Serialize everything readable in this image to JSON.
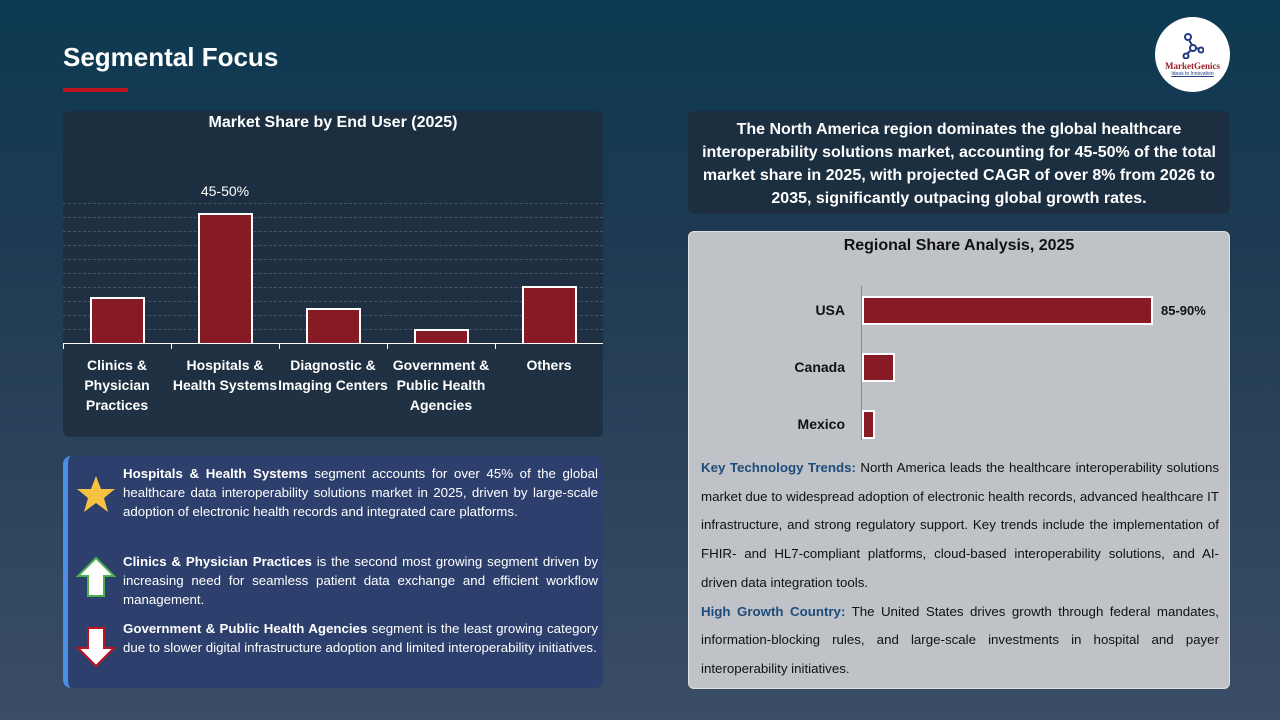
{
  "header": {
    "title": "Segmental Focus"
  },
  "logo": {
    "name": "MarketGenics",
    "tagline": "Ideas to Innovation"
  },
  "chart_data": [
    {
      "type": "bar",
      "title": "Market Share by End User (2025)",
      "categories": [
        "Clinics & Physician Practices",
        "Hospitals & Health Systems",
        "Diagnostic & Imaging Centers",
        "Government & Public Health Agencies",
        "Others"
      ],
      "values": [
        17,
        47.5,
        13,
        5,
        21
      ],
      "data_labels": [
        "",
        "45-50%",
        "",
        "",
        ""
      ],
      "ylim": [
        0,
        55
      ],
      "unit": "%",
      "grid": true,
      "color": "#861a25"
    },
    {
      "type": "bar",
      "orientation": "horizontal",
      "title": "Regional Share Analysis, 2025",
      "categories": [
        "USA",
        "Canada",
        "Mexico"
      ],
      "values": [
        87.5,
        10,
        4
      ],
      "data_labels": [
        "85-90%",
        "",
        ""
      ],
      "xlim": [
        0,
        87.5
      ],
      "unit": "%",
      "color": "#861a25"
    }
  ],
  "summary": "The North America region dominates the global healthcare interoperability solutions  market, accounting for 45-50% of the total market share in 2025, with projected CAGR of over 8% from 2026 to 2035, significantly outpacing global growth rates.",
  "regional_text": [
    {
      "label": "Key Technology Trends:",
      "text": " North America leads the healthcare interoperability solutions market due to widespread adoption of electronic health records, advanced healthcare IT infrastructure, and strong regulatory support. Key trends include the implementation of FHIR- and HL7-compliant platforms, cloud-based interoperability solutions, and AI-driven data integration tools."
    },
    {
      "label": "High Growth Country:",
      "text": " The United States drives growth through federal mandates, information-blocking rules, and large-scale investments in hospital and payer interoperability initiatives."
    }
  ],
  "insights": [
    {
      "icon": "star-icon",
      "bold": "Hospitals & Health Systems",
      "text": " segment accounts for over 45% of the global healthcare data interoperability solutions  market in 2025, driven by large-scale adoption of electronic health records and integrated care platforms."
    },
    {
      "icon": "arrow-up-icon",
      "bold": "Clinics & Physician Practices",
      "text": " is the second most growing segment driven by increasing need for seamless patient data exchange and efficient workflow management."
    },
    {
      "icon": "arrow-down-icon",
      "bold": "Government & Public Health Agencies",
      "text": " segment is the least growing category due to slower digital infrastructure adoption and limited interoperability initiatives."
    }
  ]
}
